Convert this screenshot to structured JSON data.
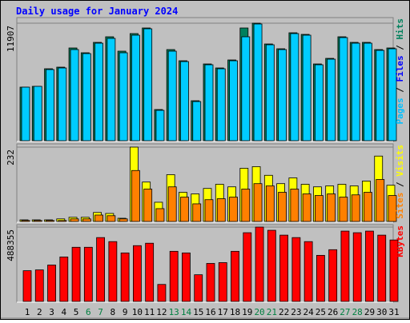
{
  "chart_data": [
    {
      "type": "bar",
      "title": "Daily usage for January 2024",
      "legend_separator": " / ",
      "legend": [
        {
          "name": "Pages",
          "color": "#00c0ff"
        },
        {
          "name": "Files",
          "color": "#0000ff"
        },
        {
          "name": "Hits",
          "color": "#00805c"
        }
      ],
      "series": [
        {
          "color": "#00805c",
          "values": [
            5427,
            5508,
            7290,
            7452,
            9396,
            8910,
            9963,
            10530,
            9072,
            10854,
            11421,
            3159,
            9234,
            8100,
            4050,
            7776,
            7371,
            8181,
            11421,
            11907,
            9801,
            9315,
            10935,
            10773,
            7776,
            8343,
            10530,
            9963,
            9963,
            9234,
            9396
          ]
        },
        {
          "color": "#00ccff",
          "values": [
            5427,
            5508,
            7209,
            7371,
            9234,
            8829,
            9882,
            10368,
            8910,
            10692,
            11340,
            3078,
            9072,
            8019,
            3969,
            7695,
            7290,
            8100,
            10530,
            11826,
            9720,
            9234,
            10854,
            10692,
            7695,
            8262,
            10449,
            9882,
            9882,
            9153,
            9315
          ]
        }
      ],
      "ylim": [
        0,
        11907
      ],
      "yticks": [
        11907
      ],
      "grid": true
    },
    {
      "type": "bar",
      "legend": [
        {
          "name": "Sites",
          "color": "#ff8000"
        },
        {
          "name": "Visits",
          "color": "#ffff00"
        }
      ],
      "series": [
        {
          "color": "#ffff00",
          "values": [
            5,
            5,
            5,
            8,
            13,
            13,
            28,
            25,
            10,
            232,
            123,
            60,
            146,
            91,
            86,
            103,
            116,
            108,
            166,
            171,
            144,
            118,
            136,
            116,
            108,
            111,
            116,
            111,
            126,
            204,
            113
          ]
        },
        {
          "color": "#ff8000",
          "values": [
            3,
            3,
            3,
            3,
            8,
            8,
            20,
            18,
            8,
            159,
            101,
            40,
            108,
            76,
            55,
            68,
            71,
            76,
            101,
            118,
            111,
            91,
            101,
            86,
            81,
            86,
            76,
            83,
            91,
            131,
            81
          ]
        }
      ],
      "ylim": [
        0,
        232
      ],
      "yticks": [
        232
      ],
      "grid": true
    },
    {
      "type": "bar",
      "legend": [
        {
          "name": "KBytes",
          "color": "#ff0000"
        }
      ],
      "categories": [
        "1",
        "2",
        "3",
        "4",
        "5",
        "6",
        "7",
        "8",
        "9",
        "10",
        "11",
        "12",
        "13",
        "14",
        "15",
        "16",
        "17",
        "18",
        "19",
        "20",
        "21",
        "22",
        "23",
        "24",
        "25",
        "26",
        "27",
        "28",
        "29",
        "30",
        "31"
      ],
      "category_colors": [
        "#000000",
        "#000000",
        "#000000",
        "#000000",
        "#000000",
        "#008040",
        "#008040",
        "#000000",
        "#000000",
        "#000000",
        "#000000",
        "#000000",
        "#008040",
        "#008040",
        "#000000",
        "#000000",
        "#000000",
        "#000000",
        "#000000",
        "#008040",
        "#008040",
        "#000000",
        "#000000",
        "#000000",
        "#000000",
        "#000000",
        "#008040",
        "#008040",
        "#000000",
        "#000000",
        "#000000"
      ],
      "series": [
        {
          "color": "#ff0000",
          "values": [
            201700,
            207000,
            238900,
            292000,
            355600,
            355600,
            419300,
            392800,
            318500,
            366300,
            382200,
            111500,
            329100,
            318500,
            175200,
            249500,
            254800,
            329100,
            451200,
            488355,
            467100,
            435300,
            419300,
            392800,
            302600,
            339700,
            461800,
            451200,
            461800,
            435300,
            403400
          ]
        }
      ],
      "ylim": [
        0,
        488355
      ],
      "yticks": [
        488355
      ],
      "grid": true
    }
  ]
}
